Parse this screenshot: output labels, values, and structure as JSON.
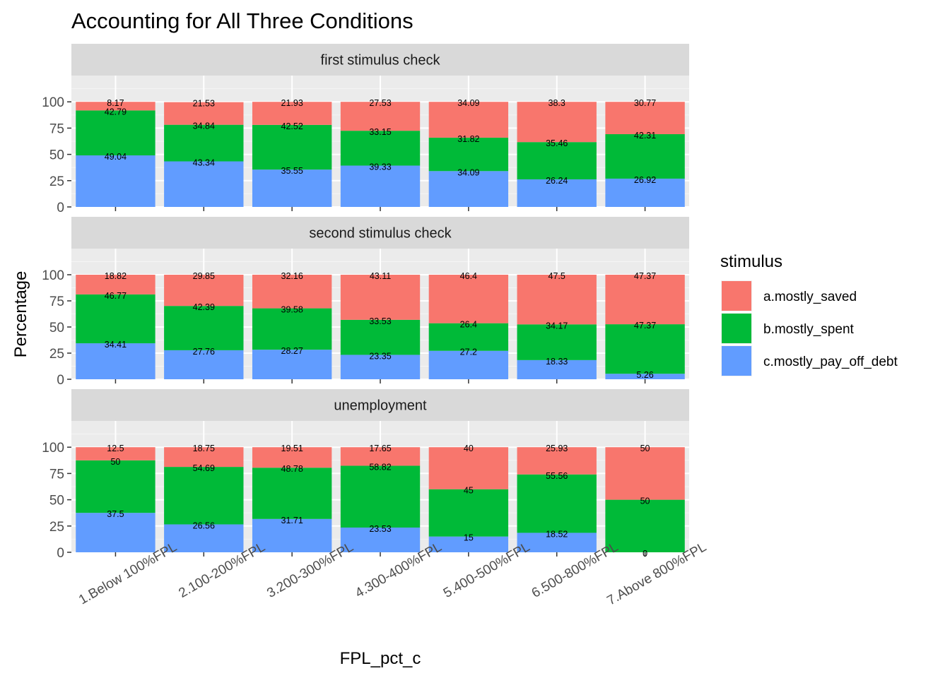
{
  "chart_data": {
    "type": "bar",
    "stacked": true,
    "title": "Accounting for All Three Conditions",
    "xlabel": "FPL_pct_c",
    "ylabel": "Percentage",
    "ylim": [
      0,
      125
    ],
    "yticks": [
      0,
      25,
      50,
      75,
      100
    ],
    "grid": true,
    "legend": {
      "title": "stimulus",
      "position": "right"
    },
    "categories": [
      "1.Below 100%FPL",
      "2.100-200%FPL",
      "3.200-300%FPL",
      "4.300-400%FPL",
      "5.400-500%FPL",
      "6.500-800%FPL",
      "7.Above 800%FPL"
    ],
    "series_order": [
      "c.mostly_pay_off_debt",
      "b.mostly_spent",
      "a.mostly_saved"
    ],
    "series": [
      {
        "name": "a.mostly_saved",
        "color": "#F8766D"
      },
      {
        "name": "b.mostly_spent",
        "color": "#00BA38"
      },
      {
        "name": "c.mostly_pay_off_debt",
        "color": "#619CFF"
      }
    ],
    "panels": [
      {
        "label": "first stimulus check",
        "values": {
          "a.mostly_saved": [
            8.17,
            21.53,
            21.93,
            27.53,
            34.09,
            38.3,
            30.77
          ],
          "b.mostly_spent": [
            42.79,
            34.84,
            42.52,
            33.15,
            31.82,
            35.46,
            42.31
          ],
          "c.mostly_pay_off_debt": [
            49.04,
            43.34,
            35.55,
            39.33,
            34.09,
            26.24,
            26.92
          ]
        }
      },
      {
        "label": "second stimulus check",
        "values": {
          "a.mostly_saved": [
            18.82,
            29.85,
            32.16,
            43.11,
            46.4,
            47.5,
            47.37
          ],
          "b.mostly_spent": [
            46.77,
            42.39,
            39.58,
            33.53,
            26.4,
            34.17,
            47.37
          ],
          "c.mostly_pay_off_debt": [
            34.41,
            27.76,
            28.27,
            23.35,
            27.2,
            18.33,
            5.26
          ]
        }
      },
      {
        "label": "unemployment",
        "values": {
          "a.mostly_saved": [
            12.5,
            18.75,
            19.51,
            17.65,
            40,
            25.93,
            50
          ],
          "b.mostly_spent": [
            50,
            54.69,
            48.78,
            58.82,
            45,
            55.56,
            50
          ],
          "c.mostly_pay_off_debt": [
            37.5,
            26.56,
            31.71,
            23.53,
            15,
            18.52,
            0
          ]
        }
      }
    ]
  }
}
